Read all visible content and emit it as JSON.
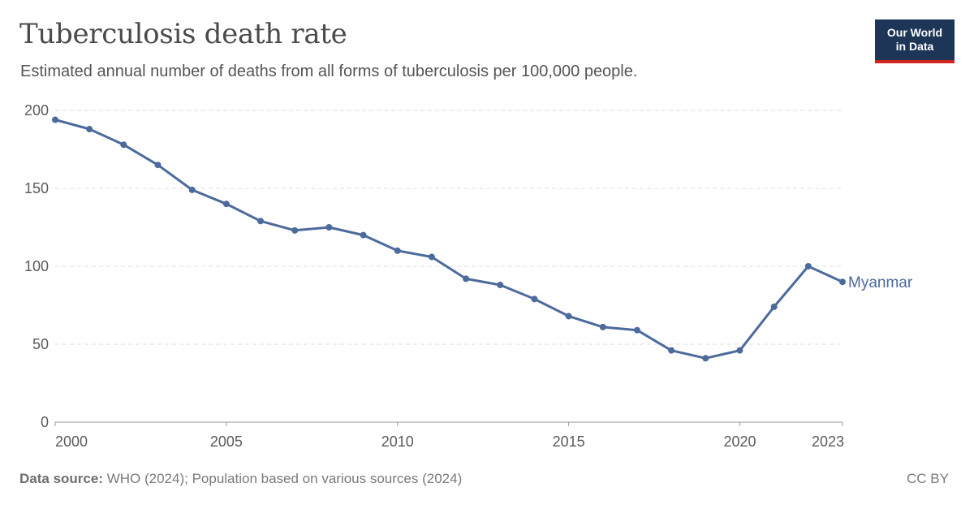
{
  "header": {
    "title": "Tuberculosis death rate",
    "subtitle": "Estimated annual number of deaths from all forms of tuberculosis per 100,000 people."
  },
  "logo": {
    "line1": "Our World",
    "line2": "in Data"
  },
  "footer": {
    "source_label": "Data source:",
    "source_text": "WHO (2024); Population based on various sources (2024)",
    "license": "CC BY"
  },
  "colors": {
    "series": "#4c6a9c",
    "logo_bg": "#1d3557",
    "logo_accent": "#ce261e"
  },
  "chart_data": {
    "type": "line",
    "title": "Tuberculosis death rate",
    "subtitle": "Estimated annual number of deaths from all forms of tuberculosis per 100,000 people.",
    "xlabel": "",
    "ylabel": "",
    "x_ticks": [
      2000,
      2005,
      2010,
      2015,
      2020,
      2023
    ],
    "y_ticks": [
      0,
      50,
      100,
      150,
      200
    ],
    "xlim": [
      2000,
      2023
    ],
    "ylim": [
      0,
      200
    ],
    "grid": "horizontal dashed",
    "legend": "inline label at line end",
    "series": [
      {
        "name": "Myanmar",
        "color": "#4c6a9c",
        "x": [
          2000,
          2001,
          2002,
          2003,
          2004,
          2005,
          2006,
          2007,
          2008,
          2009,
          2010,
          2011,
          2012,
          2013,
          2014,
          2015,
          2016,
          2017,
          2018,
          2019,
          2020,
          2021,
          2022,
          2023
        ],
        "values": [
          194,
          188,
          178,
          165,
          149,
          140,
          129,
          123,
          125,
          120,
          110,
          106,
          92,
          88,
          79,
          68,
          61,
          59,
          46,
          41,
          46,
          74,
          100,
          90
        ]
      }
    ]
  }
}
